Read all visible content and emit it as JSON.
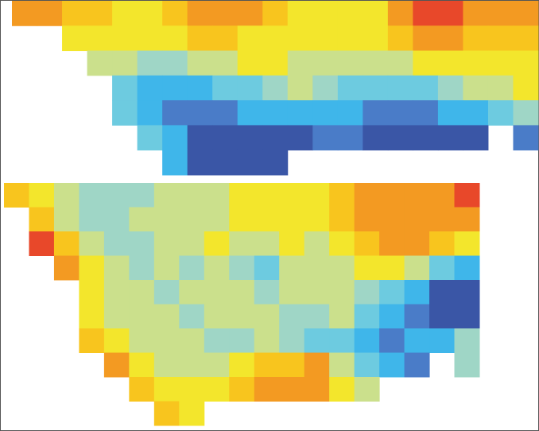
{
  "chart_data": [
    {
      "type": "heatmap",
      "vlim": [
        0,
        9
      ],
      "colors": [
        "#3a56a6",
        "#4a7cc8",
        "#3fb6ea",
        "#6dcbe0",
        "#9fd6c6",
        "#cbe08c",
        "#f3e62c",
        "#f8c51e",
        "#f39a22",
        "#e8482a"
      ],
      "values": [
        [
          8,
          8,
          7,
          7,
          6,
          6,
          7,
          8,
          8,
          8,
          7,
          6,
          6,
          6,
          6,
          8,
          9,
          9,
          8,
          8,
          8
        ],
        [
          null,
          null,
          6,
          6,
          6,
          6,
          6,
          7,
          7,
          6,
          6,
          6,
          6,
          6,
          6,
          7,
          8,
          8,
          7,
          7,
          7
        ],
        [
          null,
          null,
          null,
          5,
          5,
          4,
          4,
          5,
          5,
          6,
          6,
          5,
          5,
          5,
          5,
          5,
          6,
          6,
          6,
          6,
          6
        ],
        [
          null,
          null,
          null,
          null,
          3,
          2,
          2,
          2,
          3,
          3,
          4,
          5,
          4,
          3,
          3,
          3,
          3,
          4,
          5,
          5,
          6
        ],
        [
          null,
          null,
          null,
          null,
          3,
          2,
          1,
          1,
          1,
          2,
          2,
          2,
          2,
          2,
          1,
          1,
          1,
          2,
          2,
          3,
          4
        ],
        [
          null,
          null,
          null,
          null,
          null,
          3,
          2,
          0,
          0,
          0,
          0,
          0,
          1,
          1,
          0,
          0,
          0,
          0,
          0,
          null,
          1
        ],
        [
          null,
          null,
          null,
          null,
          null,
          null,
          2,
          0,
          0,
          0,
          0,
          null,
          null,
          null,
          null,
          null,
          null,
          null,
          null,
          null,
          null
        ]
      ]
    },
    {
      "type": "heatmap",
      "vlim": [
        0,
        9
      ],
      "colors": [
        "#3a56a6",
        "#4a7cc8",
        "#3fb6ea",
        "#6dcbe0",
        "#9fd6c6",
        "#cbe08c",
        "#f3e62c",
        "#f8c51e",
        "#f39a22",
        "#e8482a"
      ],
      "values": [
        [
          7,
          6,
          5,
          4,
          4,
          4,
          5,
          5,
          5,
          6,
          6,
          6,
          6,
          7,
          8,
          8,
          8,
          8,
          9
        ],
        [
          null,
          7,
          5,
          4,
          4,
          5,
          5,
          5,
          5,
          6,
          6,
          6,
          6,
          7,
          8,
          8,
          8,
          8,
          8
        ],
        [
          null,
          9,
          7,
          5,
          4,
          4,
          5,
          5,
          6,
          5,
          5,
          6,
          5,
          6,
          7,
          8,
          8,
          7,
          6
        ],
        [
          null,
          null,
          8,
          6,
          5,
          4,
          5,
          4,
          5,
          4,
          3,
          5,
          5,
          5,
          6,
          6,
          5,
          3,
          2
        ],
        [
          null,
          null,
          null,
          6,
          5,
          5,
          4,
          5,
          5,
          5,
          4,
          5,
          5,
          5,
          4,
          3,
          2,
          0,
          0
        ],
        [
          null,
          null,
          null,
          6,
          5,
          5,
          5,
          4,
          5,
          5,
          5,
          4,
          4,
          5,
          3,
          2,
          1,
          0,
          0
        ],
        [
          null,
          null,
          null,
          7,
          6,
          5,
          5,
          5,
          4,
          4,
          5,
          4,
          3,
          3,
          2,
          1,
          2,
          2,
          4
        ],
        [
          null,
          null,
          null,
          null,
          8,
          6,
          5,
          5,
          5,
          6,
          7,
          7,
          8,
          5,
          3,
          2,
          1,
          null,
          4
        ],
        [
          null,
          null,
          null,
          null,
          null,
          7,
          6,
          6,
          6,
          7,
          8,
          8,
          8,
          6,
          5,
          null,
          null,
          null,
          null
        ],
        [
          null,
          null,
          null,
          null,
          null,
          null,
          7,
          6,
          null,
          null,
          null,
          null,
          null,
          null,
          null,
          null,
          null,
          null,
          null
        ]
      ]
    }
  ]
}
